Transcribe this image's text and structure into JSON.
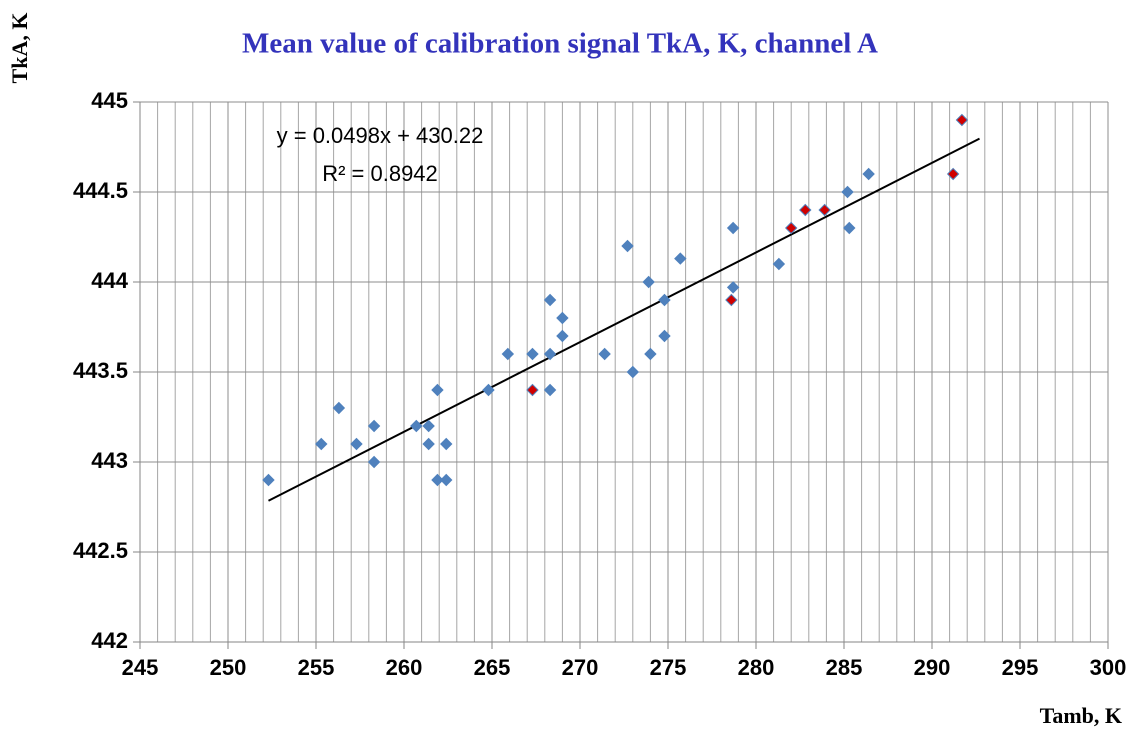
{
  "chart_data": {
    "type": "scatter",
    "title": "Mean value of calibration signal TkA, K, channel A",
    "x_label": "Tamb, K",
    "y_label": "TkA, K",
    "xlim": [
      245,
      300
    ],
    "xticks": [
      245,
      250,
      255,
      260,
      265,
      270,
      275,
      280,
      285,
      290,
      295,
      300
    ],
    "ylim": [
      442,
      445
    ],
    "yticks": [
      442,
      442.5,
      443,
      443.5,
      444,
      444.5,
      445
    ],
    "grid": true,
    "color": "#4f81bd",
    "x": [
      252.3,
      255.3,
      256.3,
      257.3,
      258.3,
      258.3,
      260.7,
      261.4,
      261.4,
      261.9,
      261.9,
      262.4,
      262.4,
      264.8,
      265.9,
      267.3,
      267.3,
      268.3,
      268.3,
      268.3,
      269.0,
      269.0,
      271.4,
      272.7,
      273.0,
      273.9,
      274.0,
      274.8,
      274.8,
      275.7,
      278.7,
      278.7,
      278.6,
      281.3,
      282.0,
      282.8,
      283.9,
      285.2,
      285.3,
      286.4,
      291.2,
      291.7
    ],
    "values": [
      442.9,
      443.1,
      443.3,
      443.1,
      443.2,
      443.0,
      443.2,
      443.2,
      443.1,
      443.4,
      442.9,
      442.9,
      443.1,
      443.4,
      443.6,
      443.4,
      443.6,
      443.9,
      443.6,
      443.4,
      443.7,
      443.8,
      443.6,
      444.2,
      443.5,
      444.0,
      443.6,
      443.9,
      443.7,
      444.13,
      444.3,
      443.97,
      443.9,
      444.1,
      444.3,
      444.4,
      444.4,
      444.5,
      444.3,
      444.6,
      444.6,
      444.9
    ],
    "point_colors": [
      "#4f81bd",
      "#4f81bd",
      "#4f81bd",
      "#4f81bd",
      "#4f81bd",
      "#4f81bd",
      "#4f81bd",
      "#4f81bd",
      "#4f81bd",
      "#4f81bd",
      "#4f81bd",
      "#4f81bd",
      "#4f81bd",
      "#4f81bd",
      "#4f81bd",
      "#d00000",
      "#4f81bd",
      "#4f81bd",
      "#4f81bd",
      "#4f81bd",
      "#4f81bd",
      "#4f81bd",
      "#4f81bd",
      "#4f81bd",
      "#4f81bd",
      "#4f81bd",
      "#4f81bd",
      "#4f81bd",
      "#4f81bd",
      "#4f81bd",
      "#4f81bd",
      "#4f81bd",
      "#d00000",
      "#4f81bd",
      "#d00000",
      "#d00000",
      "#d00000",
      "#4f81bd",
      "#4f81bd",
      "#4f81bd",
      "#d00000",
      "#d00000"
    ],
    "trendline": {
      "slope": 0.0498,
      "intercept": 430.22,
      "color": "#000000",
      "equation": "y = 0.0498x + 430.22",
      "r_squared": 0.8942,
      "r_squared_label": "R² = 0.8942"
    }
  }
}
